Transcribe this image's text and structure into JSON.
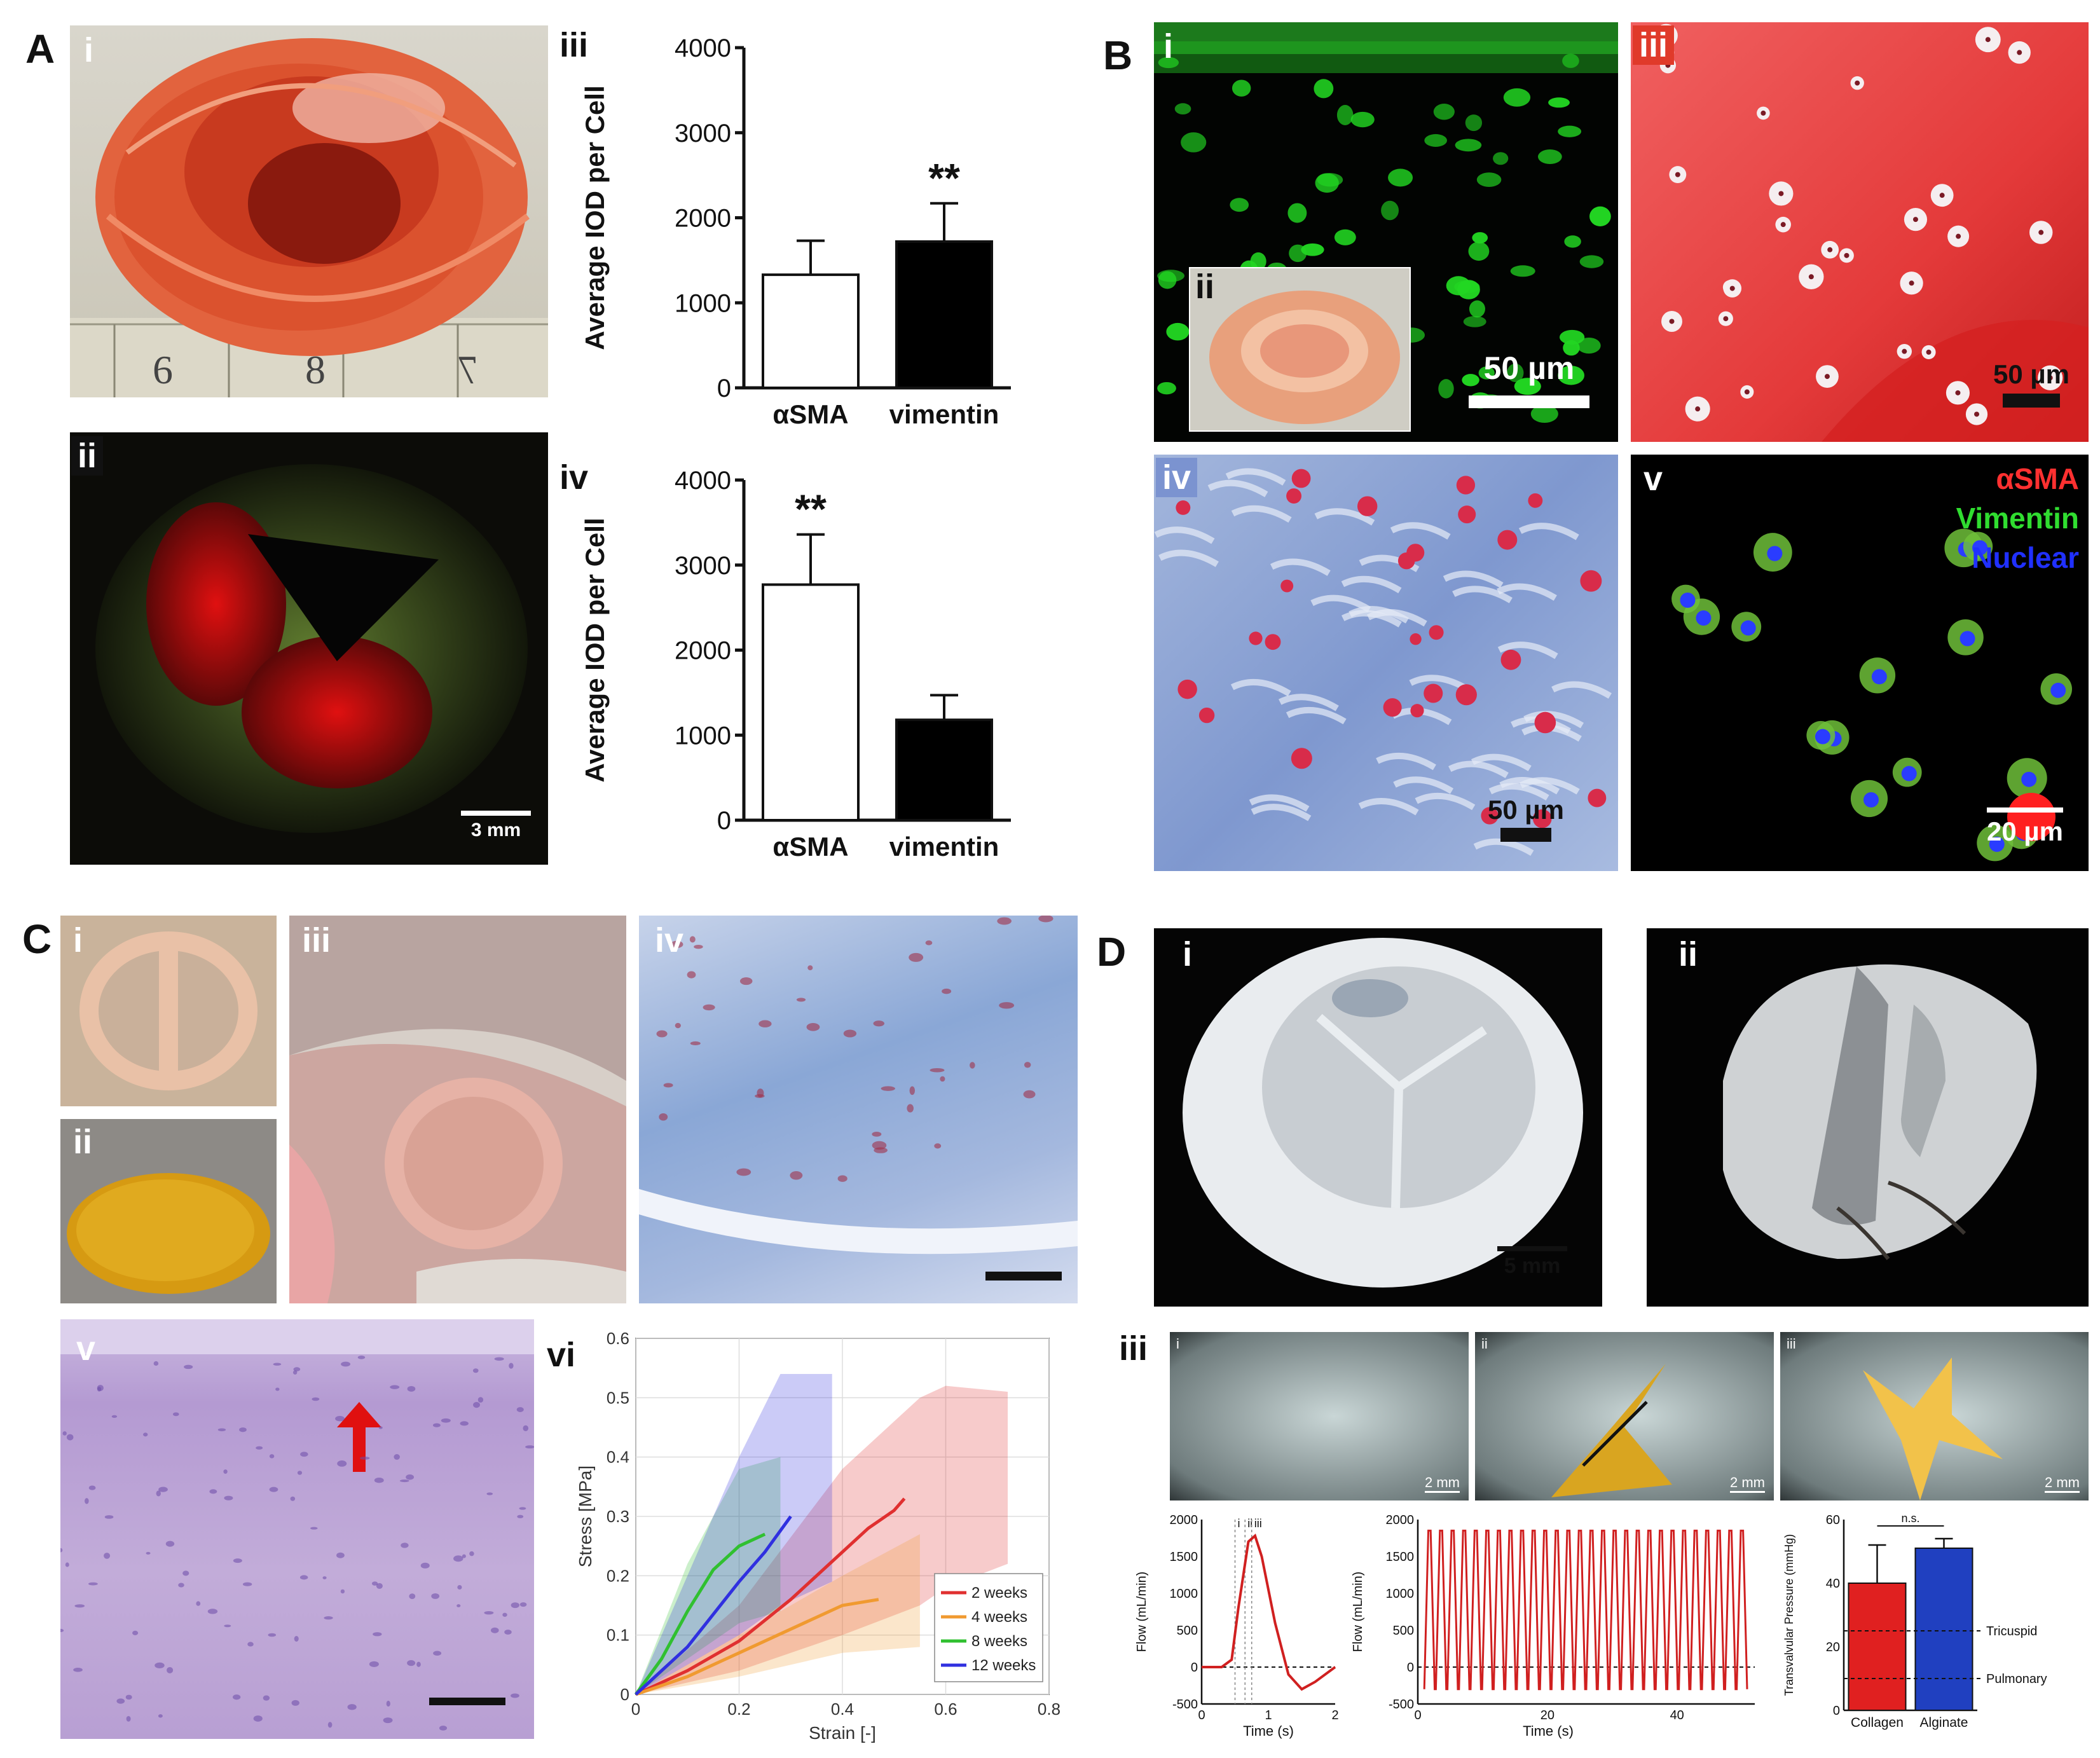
{
  "panel_letters": [
    "A",
    "B",
    "C",
    "D"
  ],
  "A": {
    "sub": [
      "i",
      "ii",
      "iii",
      "iv"
    ],
    "ruler": [
      "6",
      "8",
      "7"
    ],
    "scale_ii": "3 mm"
  },
  "B": {
    "sub": [
      "i",
      "ii",
      "iii",
      "iv",
      "v"
    ],
    "scale_i": "50 µm",
    "scale_iii": "50 µm",
    "scale_iv": "50 µm",
    "scale_v": "20 µm",
    "legend_v": [
      "αSMA",
      "Vimentin",
      "Nuclear"
    ],
    "legend_colors": [
      "#ff3333",
      "#33dd33",
      "#2233ff"
    ]
  },
  "C": {
    "sub": [
      "i",
      "ii",
      "iii",
      "iv",
      "v",
      "vi"
    ]
  },
  "D": {
    "sub": [
      "i",
      "ii",
      "iii"
    ],
    "scale_i": "5 mm",
    "frames": [
      "i",
      "ii",
      "iii"
    ],
    "frame_scale": "2 mm"
  },
  "chart_data": [
    {
      "id": "A-iii",
      "type": "bar",
      "categories": [
        "αSMA",
        "vimentin"
      ],
      "values": [
        1330,
        1720
      ],
      "errors": [
        400,
        450
      ],
      "ylabel": "Average IOD per Cell",
      "ylim": [
        0,
        4000
      ],
      "yticks": [
        0,
        1000,
        2000,
        3000,
        4000
      ],
      "fills": [
        "#ffffff",
        "#000000"
      ],
      "annotations": [
        {
          "category": "vimentin",
          "text": "**"
        }
      ]
    },
    {
      "id": "A-iv",
      "type": "bar",
      "categories": [
        "αSMA",
        "vimentin"
      ],
      "values": [
        2770,
        1180
      ],
      "errors": [
        590,
        290
      ],
      "ylabel": "Average IOD per Cell",
      "ylim": [
        0,
        4000
      ],
      "yticks": [
        0,
        1000,
        2000,
        3000,
        4000
      ],
      "fills": [
        "#ffffff",
        "#000000"
      ],
      "annotations": [
        {
          "category": "αSMA",
          "text": "**"
        }
      ]
    },
    {
      "id": "C-vi",
      "type": "line",
      "xlabel": "Strain [-]",
      "ylabel": "Stress [MPa]",
      "xlim": [
        0,
        0.8
      ],
      "ylim": [
        0,
        0.6
      ],
      "xticks": [
        0,
        0.2,
        0.4,
        0.6,
        0.8
      ],
      "yticks": [
        0,
        0.1,
        0.2,
        0.3,
        0.4,
        0.5,
        0.6
      ],
      "grid": true,
      "legend": "bottom-right",
      "series": [
        {
          "name": "2 weeks",
          "color": "#e03030",
          "x": [
            0,
            0.1,
            0.2,
            0.3,
            0.4,
            0.45,
            0.5,
            0.52
          ],
          "y": [
            0,
            0.04,
            0.09,
            0.16,
            0.24,
            0.28,
            0.31,
            0.33
          ],
          "band": {
            "x": [
              0,
              0.2,
              0.4,
              0.55,
              0.6,
              0.72
            ],
            "upper": [
              0,
              0.15,
              0.38,
              0.5,
              0.52,
              0.51
            ],
            "lower": [
              0,
              0.04,
              0.1,
              0.15,
              0.18,
              0.22
            ]
          }
        },
        {
          "name": "4 weeks",
          "color": "#f09a30",
          "x": [
            0,
            0.1,
            0.2,
            0.3,
            0.4,
            0.47
          ],
          "y": [
            0,
            0.03,
            0.07,
            0.11,
            0.15,
            0.16
          ],
          "band": {
            "x": [
              0,
              0.2,
              0.4,
              0.55
            ],
            "upper": [
              0,
              0.1,
              0.2,
              0.27
            ],
            "lower": [
              0,
              0.03,
              0.07,
              0.08
            ]
          }
        },
        {
          "name": "8 weeks",
          "color": "#30c030",
          "x": [
            0,
            0.05,
            0.1,
            0.15,
            0.2,
            0.25
          ],
          "y": [
            0,
            0.06,
            0.14,
            0.21,
            0.25,
            0.27
          ],
          "band": {
            "x": [
              0,
              0.1,
              0.2,
              0.28
            ],
            "upper": [
              0,
              0.22,
              0.38,
              0.4
            ],
            "lower": [
              0,
              0.06,
              0.12,
              0.14
            ]
          }
        },
        {
          "name": "12 weeks",
          "color": "#3030e0",
          "x": [
            0,
            0.1,
            0.2,
            0.25,
            0.3
          ],
          "y": [
            0,
            0.08,
            0.19,
            0.24,
            0.3
          ],
          "band": {
            "x": [
              0,
              0.1,
              0.2,
              0.28,
              0.38
            ],
            "upper": [
              0,
              0.2,
              0.4,
              0.54,
              0.54
            ],
            "lower": [
              0,
              0.05,
              0.1,
              0.15,
              0.19
            ]
          }
        }
      ]
    },
    {
      "id": "D-iii-flow-single",
      "type": "line",
      "xlabel": "Time (s)",
      "ylabel": "Flow (mL/min)",
      "xlim": [
        0,
        2
      ],
      "ylim": [
        -500,
        2000
      ],
      "xticks": [
        0,
        1,
        2
      ],
      "yticks": [
        -500,
        0,
        500,
        1000,
        1500,
        2000
      ],
      "markers": [
        "i",
        "ii",
        "iii"
      ],
      "marker_x": [
        0.5,
        0.65,
        0.75
      ],
      "series": [
        {
          "color": "#d02020",
          "x": [
            0,
            0.3,
            0.45,
            0.55,
            0.7,
            0.8,
            0.9,
            1.1,
            1.3,
            1.5,
            1.7,
            2.0
          ],
          "y": [
            0,
            0,
            100,
            800,
            1700,
            1780,
            1500,
            600,
            -100,
            -300,
            -200,
            0
          ]
        }
      ]
    },
    {
      "id": "D-iii-flow-cycles",
      "type": "line",
      "xlabel": "Time (s)",
      "ylabel": "Flow (mL/min)",
      "xlim": [
        0,
        52
      ],
      "ylim": [
        -500,
        2000
      ],
      "xticks": [
        0,
        20,
        40
      ],
      "yticks": [
        -500,
        0,
        500,
        1000,
        1500,
        2000
      ],
      "series": [
        {
          "color": "#d02020",
          "cycles": 28,
          "max": 1850,
          "min": -300
        }
      ]
    },
    {
      "id": "D-iii-pressure",
      "type": "bar",
      "categories": [
        "Collagen",
        "Alginate"
      ],
      "values": [
        40,
        51
      ],
      "errors": [
        12,
        3
      ],
      "ylabel": "Transvalvular Pressure (mmHg)",
      "ylim": [
        0,
        60
      ],
      "yticks": [
        0,
        20,
        40,
        60
      ],
      "fills": [
        "#e02020",
        "#2040c0"
      ],
      "reference_lines": [
        {
          "y": 25,
          "label": "Tricuspid"
        },
        {
          "y": 10,
          "label": "Pulmonary"
        }
      ],
      "annotations": [
        {
          "text": "n.s."
        }
      ]
    }
  ]
}
